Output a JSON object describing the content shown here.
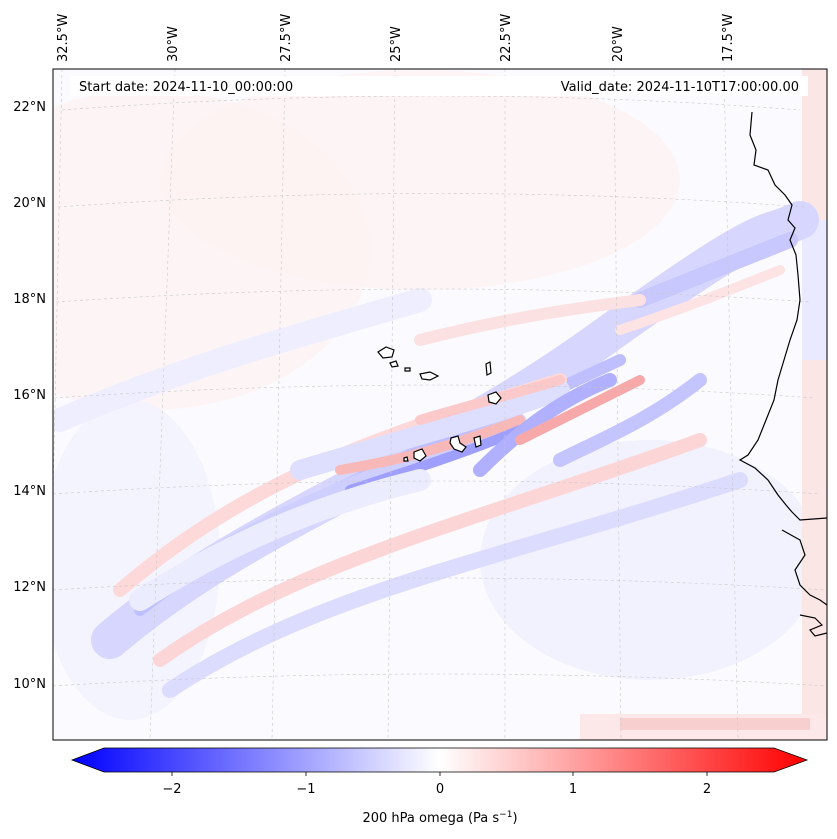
{
  "header": {
    "start_date": "Start date: 2024-11-10_00:00:00",
    "valid_date": "Valid_date: 2024-11-10T17:00:00.00"
  },
  "map": {
    "projection": "lambert conformal",
    "lon_labels": [
      "32.5°W",
      "30°W",
      "27.5°W",
      "25°W",
      "22.5°W",
      "20°W",
      "17.5°W"
    ],
    "lat_labels": [
      "22°N",
      "20°N",
      "18°N",
      "16°N",
      "14°N",
      "12°N",
      "10°N"
    ],
    "coastline_color": "#000000",
    "gridline_color": "#bbbbbb"
  },
  "colorbar": {
    "ticks": [
      "−2",
      "−1",
      "0",
      "1",
      "2"
    ],
    "label": "200 hPa omega (Pa s",
    "label_sup": "−1",
    "label_end": ")",
    "min_color": "#0000ff",
    "mid_color": "#ffffff",
    "max_color": "#ff0000",
    "range": [
      -2.5,
      2.5
    ]
  }
}
